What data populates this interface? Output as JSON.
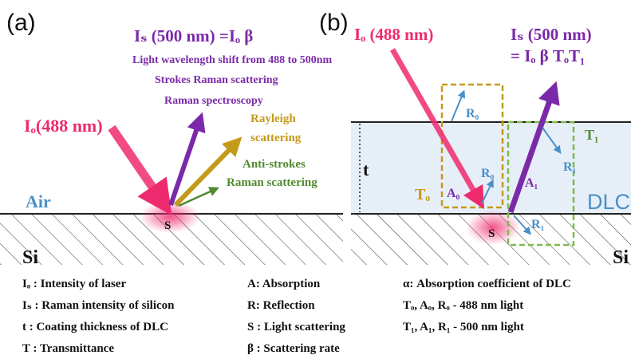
{
  "panel_a": {
    "label": "(a)",
    "incident": "Iₒ(488 nm)",
    "raman_formula": "Iₛ (500 nm) =Iₒ β",
    "notes": [
      "Light wavelength shift from 488 to 500nm",
      "Strokes Raman scattering",
      "Raman spectroscopy"
    ],
    "rayleigh": [
      "Rayleigh",
      "scattering"
    ],
    "anti_stokes": [
      "Anti-strokes",
      "Raman scattering"
    ],
    "air": "Air",
    "substrate": "Si",
    "spot": "S"
  },
  "panel_b": {
    "label": "(b)",
    "incident": "Iₒ (488 nm)",
    "raman_formula": [
      "Iₛ (500 nm)",
      "= Iₒ β TₒT₁"
    ],
    "thickness": "t",
    "coating": "DLC",
    "substrate": "Si",
    "spot": "S",
    "r0_top": "R₀",
    "r0_bottom": "R₀",
    "a0": "A₀",
    "t0": "Tₒ",
    "t1": "T₁",
    "r1_top": "R₁",
    "a1": "A₁",
    "r1_bottom": "R₁"
  },
  "legend": {
    "columns": [
      [
        "Iₒ : Intensity of laser",
        "Iₛ : Raman intensity of silicon",
        "t : Coating thickness of DLC",
        "T : Transmittance"
      ],
      [
        "A: Absorption",
        "R: Reflection",
        "S : Light scattering",
        "β : Scattering rate"
      ],
      [
        "α: Absorption coefficient of DLC",
        "Tₒ, Aₒ, Rₒ - 488 nm light",
        "T₁, A₁, R₁ - 500 nm light"
      ]
    ]
  }
}
